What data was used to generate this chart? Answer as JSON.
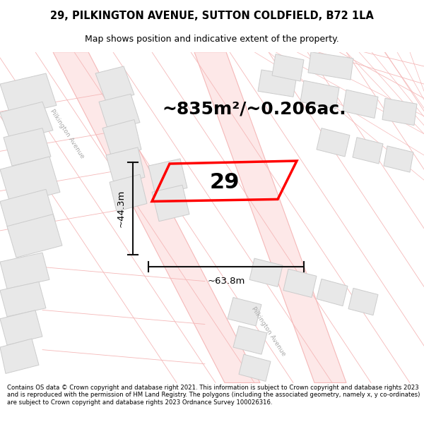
{
  "title": "29, PILKINGTON AVENUE, SUTTON COLDFIELD, B72 1LA",
  "subtitle": "Map shows position and indicative extent of the property.",
  "area_text": "~835m²/~0.206ac.",
  "footer": "Contains OS data © Crown copyright and database right 2021. This information is subject to Crown copyright and database rights 2023 and is reproduced with the permission of HM Land Registry. The polygons (including the associated geometry, namely x, y co-ordinates) are subject to Crown copyright and database rights 2023 Ordnance Survey 100026316.",
  "bg_color": "#ffffff",
  "road_line_color": "#f5b8b8",
  "road_fill_color": "#fde8e8",
  "block_color": "#e8e8e8",
  "block_border": "#cccccc",
  "highlight_color": "#ff0000",
  "dim_color": "#111111",
  "label_29": "29",
  "dim_height": "~44.3m",
  "dim_width": "~63.8m",
  "road_label_nw": "Pilkington Avenue",
  "road_label_s": "Pilkington Avenue"
}
